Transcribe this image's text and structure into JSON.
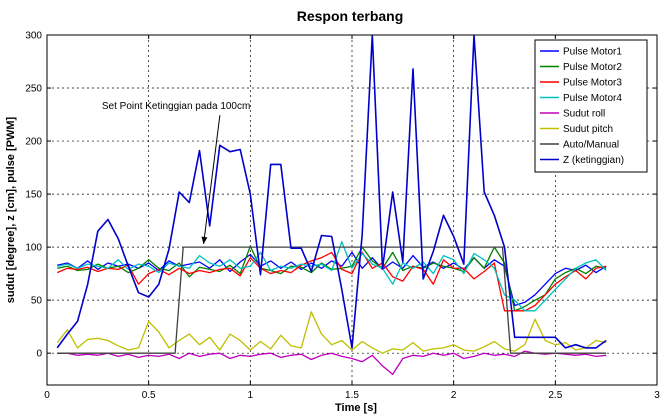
{
  "chart_data": {
    "type": "line",
    "title": "Respon terbang",
    "xlabel": "Time [s]",
    "ylabel": "sudut [degree], z [cm], pulse [PWM]",
    "xlim": [
      0,
      3
    ],
    "ylim": [
      -30,
      300
    ],
    "xticks": [
      "0",
      "0.5",
      "1",
      "1.5",
      "2",
      "2.5",
      "3"
    ],
    "xtick_values": [
      0,
      0.5,
      1,
      1.5,
      2,
      2.5,
      3
    ],
    "yticks": [
      "0",
      "50",
      "100",
      "150",
      "200",
      "250",
      "300"
    ],
    "ytick_values": [
      0,
      50,
      100,
      150,
      200,
      250,
      300
    ],
    "grid": true,
    "legend_position": "top-right",
    "annotation": {
      "text": "Set Point Ketinggian pada 100cm",
      "text_x": 0.27,
      "text_y": 230,
      "arrow_x": 0.77,
      "arrow_y": 103
    },
    "series": [
      {
        "name": "Pulse Motor1",
        "color": "#0000ff",
        "x": [
          0.05,
          0.1,
          0.15,
          0.2,
          0.25,
          0.3,
          0.35,
          0.4,
          0.45,
          0.5,
          0.55,
          0.6,
          0.65,
          0.7,
          0.75,
          0.8,
          0.85,
          0.9,
          0.95,
          1.0,
          1.05,
          1.1,
          1.15,
          1.2,
          1.25,
          1.3,
          1.35,
          1.4,
          1.45,
          1.5,
          1.55,
          1.6,
          1.65,
          1.7,
          1.75,
          1.8,
          1.85,
          1.9,
          1.95,
          2.0,
          2.05,
          2.1,
          2.15,
          2.2,
          2.25,
          2.3,
          2.35,
          2.4,
          2.45,
          2.5,
          2.55,
          2.6,
          2.65,
          2.7,
          2.75
        ],
        "y": [
          83,
          85,
          80,
          87,
          79,
          85,
          82,
          84,
          80,
          85,
          78,
          87,
          82,
          84,
          86,
          80,
          88,
          77,
          86,
          93,
          82,
          87,
          80,
          86,
          79,
          85,
          80,
          87,
          82,
          95,
          80,
          90,
          79,
          86,
          80,
          92,
          81,
          86,
          80,
          85,
          79,
          90,
          80,
          88,
          82,
          45,
          48,
          55,
          65,
          75,
          80,
          78,
          83,
          76,
          82
        ]
      },
      {
        "name": "Pulse Motor2",
        "color": "#008000",
        "x": [
          0.05,
          0.1,
          0.15,
          0.2,
          0.25,
          0.3,
          0.35,
          0.4,
          0.45,
          0.5,
          0.55,
          0.6,
          0.65,
          0.7,
          0.75,
          0.8,
          0.85,
          0.9,
          0.95,
          1.0,
          1.05,
          1.1,
          1.15,
          1.2,
          1.25,
          1.3,
          1.35,
          1.4,
          1.45,
          1.5,
          1.55,
          1.6,
          1.65,
          1.7,
          1.75,
          1.8,
          1.85,
          1.9,
          1.95,
          2.0,
          2.05,
          2.1,
          2.15,
          2.2,
          2.25,
          2.3,
          2.35,
          2.4,
          2.45,
          2.5,
          2.55,
          2.6,
          2.65,
          2.7,
          2.75
        ],
        "y": [
          80,
          82,
          78,
          79,
          84,
          80,
          82,
          76,
          80,
          88,
          80,
          78,
          85,
          72,
          81,
          79,
          77,
          83,
          75,
          101,
          80,
          78,
          75,
          82,
          81,
          76,
          85,
          79,
          80,
          82,
          100,
          87,
          80,
          95,
          78,
          82,
          80,
          85,
          82,
          80,
          77,
          90,
          80,
          100,
          85,
          40,
          44,
          50,
          55,
          70,
          76,
          80,
          75,
          82,
          80
        ]
      },
      {
        "name": "Pulse Motor3",
        "color": "#ff0000",
        "x": [
          0.05,
          0.1,
          0.15,
          0.2,
          0.25,
          0.3,
          0.35,
          0.4,
          0.45,
          0.5,
          0.55,
          0.6,
          0.65,
          0.7,
          0.75,
          0.8,
          0.85,
          0.9,
          0.95,
          1.0,
          1.05,
          1.1,
          1.15,
          1.2,
          1.25,
          1.3,
          1.35,
          1.4,
          1.45,
          1.5,
          1.55,
          1.6,
          1.65,
          1.7,
          1.75,
          1.8,
          1.85,
          1.9,
          1.95,
          2.0,
          2.05,
          2.1,
          2.15,
          2.2,
          2.25,
          2.3,
          2.35,
          2.4,
          2.45,
          2.5,
          2.55,
          2.6,
          2.65,
          2.7,
          2.75
        ],
        "y": [
          76,
          80,
          79,
          81,
          77,
          80,
          79,
          83,
          65,
          75,
          79,
          74,
          80,
          75,
          78,
          76,
          79,
          80,
          73,
          90,
          80,
          75,
          78,
          76,
          83,
          87,
          90,
          95,
          79,
          75,
          95,
          80,
          85,
          72,
          68,
          82,
          79,
          65,
          88,
          80,
          80,
          70,
          77,
          85,
          40,
          40,
          40,
          45,
          55,
          65,
          72,
          78,
          70,
          80,
          82
        ]
      },
      {
        "name": "Pulse Motor4",
        "color": "#00bfbf",
        "x": [
          0.05,
          0.1,
          0.15,
          0.2,
          0.25,
          0.3,
          0.35,
          0.4,
          0.45,
          0.5,
          0.55,
          0.6,
          0.65,
          0.7,
          0.75,
          0.8,
          0.85,
          0.9,
          0.95,
          1.0,
          1.05,
          1.1,
          1.15,
          1.2,
          1.25,
          1.3,
          1.35,
          1.4,
          1.45,
          1.5,
          1.55,
          1.6,
          1.65,
          1.7,
          1.75,
          1.8,
          1.85,
          1.9,
          1.95,
          2.0,
          2.05,
          2.1,
          2.15,
          2.2,
          2.25,
          2.3,
          2.35,
          2.4,
          2.45,
          2.5,
          2.55,
          2.6,
          2.65,
          2.7,
          2.75
        ],
        "y": [
          82,
          84,
          80,
          84,
          82,
          80,
          88,
          79,
          84,
          82,
          76,
          85,
          82,
          80,
          92,
          85,
          82,
          88,
          80,
          82,
          95,
          78,
          82,
          80,
          84,
          82,
          84,
          78,
          105,
          80,
          94,
          84,
          80,
          65,
          85,
          80,
          86,
          75,
          92,
          88,
          75,
          94,
          88,
          80,
          55,
          50,
          40,
          40,
          50,
          60,
          70,
          80,
          85,
          88,
          78
        ]
      },
      {
        "name": "Sudut roll",
        "color": "#bf00bf",
        "x": [
          0.05,
          0.1,
          0.15,
          0.2,
          0.25,
          0.3,
          0.35,
          0.4,
          0.45,
          0.5,
          0.55,
          0.6,
          0.65,
          0.7,
          0.75,
          0.8,
          0.85,
          0.9,
          0.95,
          1.0,
          1.05,
          1.1,
          1.15,
          1.2,
          1.25,
          1.3,
          1.35,
          1.4,
          1.45,
          1.5,
          1.55,
          1.6,
          1.65,
          1.7,
          1.75,
          1.8,
          1.85,
          1.9,
          1.95,
          2.0,
          2.05,
          2.1,
          2.15,
          2.2,
          2.25,
          2.3,
          2.35,
          2.4,
          2.45,
          2.5,
          2.55,
          2.6,
          2.65,
          2.7,
          2.75
        ],
        "y": [
          0,
          0,
          -2,
          -1,
          -2,
          0,
          -3,
          -1,
          -4,
          -2,
          -3,
          -1,
          -5,
          0,
          -3,
          -1,
          0,
          -5,
          -2,
          -3,
          -1,
          0,
          -4,
          -2,
          -1,
          -6,
          -2,
          0,
          -3,
          -5,
          -8,
          -2,
          -12,
          -20,
          -5,
          -2,
          -3,
          0,
          -2,
          0,
          -5,
          -3,
          0,
          -2,
          -1,
          -3,
          2,
          0,
          -1,
          0,
          -1,
          -2,
          -1,
          -3,
          -2
        ]
      },
      {
        "name": "Sudut pitch",
        "color": "#bfbf00",
        "x": [
          0.05,
          0.1,
          0.15,
          0.2,
          0.25,
          0.3,
          0.35,
          0.4,
          0.45,
          0.5,
          0.55,
          0.6,
          0.65,
          0.7,
          0.75,
          0.8,
          0.85,
          0.9,
          0.95,
          1.0,
          1.05,
          1.1,
          1.15,
          1.2,
          1.25,
          1.3,
          1.35,
          1.4,
          1.45,
          1.5,
          1.55,
          1.6,
          1.65,
          1.7,
          1.75,
          1.8,
          1.85,
          1.9,
          1.95,
          2.0,
          2.05,
          2.1,
          2.15,
          2.2,
          2.25,
          2.3,
          2.35,
          2.4,
          2.45,
          2.5,
          2.55,
          2.6,
          2.65,
          2.7,
          2.75
        ],
        "y": [
          10,
          22,
          5,
          13,
          14,
          12,
          7,
          3,
          5,
          30,
          20,
          5,
          12,
          18,
          8,
          15,
          3,
          18,
          12,
          3,
          11,
          4,
          17,
          7,
          5,
          39,
          18,
          8,
          12,
          3,
          11,
          5,
          0,
          4,
          3,
          10,
          2,
          4,
          5,
          8,
          3,
          2,
          6,
          11,
          4,
          2,
          8,
          32,
          12,
          8,
          10,
          3,
          5,
          12,
          10
        ]
      },
      {
        "name": "Auto/Manual",
        "color": "#404040",
        "x": [
          0.05,
          0.63,
          0.67,
          2.24,
          2.28,
          2.75
        ],
        "y": [
          0,
          0,
          100,
          100,
          0,
          0
        ]
      },
      {
        "name": "Z (ketinggian)",
        "color": "#0000cc",
        "x": [
          0.05,
          0.1,
          0.15,
          0.2,
          0.25,
          0.3,
          0.35,
          0.4,
          0.45,
          0.5,
          0.55,
          0.6,
          0.65,
          0.7,
          0.75,
          0.8,
          0.85,
          0.9,
          0.95,
          1.0,
          1.05,
          1.1,
          1.15,
          1.2,
          1.25,
          1.3,
          1.35,
          1.4,
          1.45,
          1.5,
          1.55,
          1.6,
          1.65,
          1.7,
          1.75,
          1.8,
          1.85,
          1.9,
          1.95,
          2.0,
          2.05,
          2.1,
          2.15,
          2.2,
          2.25,
          2.3,
          2.35,
          2.4,
          2.45,
          2.5,
          2.55,
          2.6,
          2.65,
          2.7,
          2.75
        ],
        "y": [
          5,
          18,
          30,
          65,
          115,
          126,
          108,
          82,
          57,
          53,
          65,
          98,
          152,
          142,
          191,
          120,
          196,
          190,
          192,
          150,
          74,
          178,
          178,
          99,
          99,
          77,
          111,
          110,
          60,
          5,
          112,
          300,
          80,
          152,
          86,
          268,
          70,
          96,
          130,
          110,
          84,
          300,
          152,
          130,
          100,
          15,
          15,
          15,
          15,
          15,
          5,
          8,
          5,
          5,
          12
        ]
      }
    ]
  }
}
